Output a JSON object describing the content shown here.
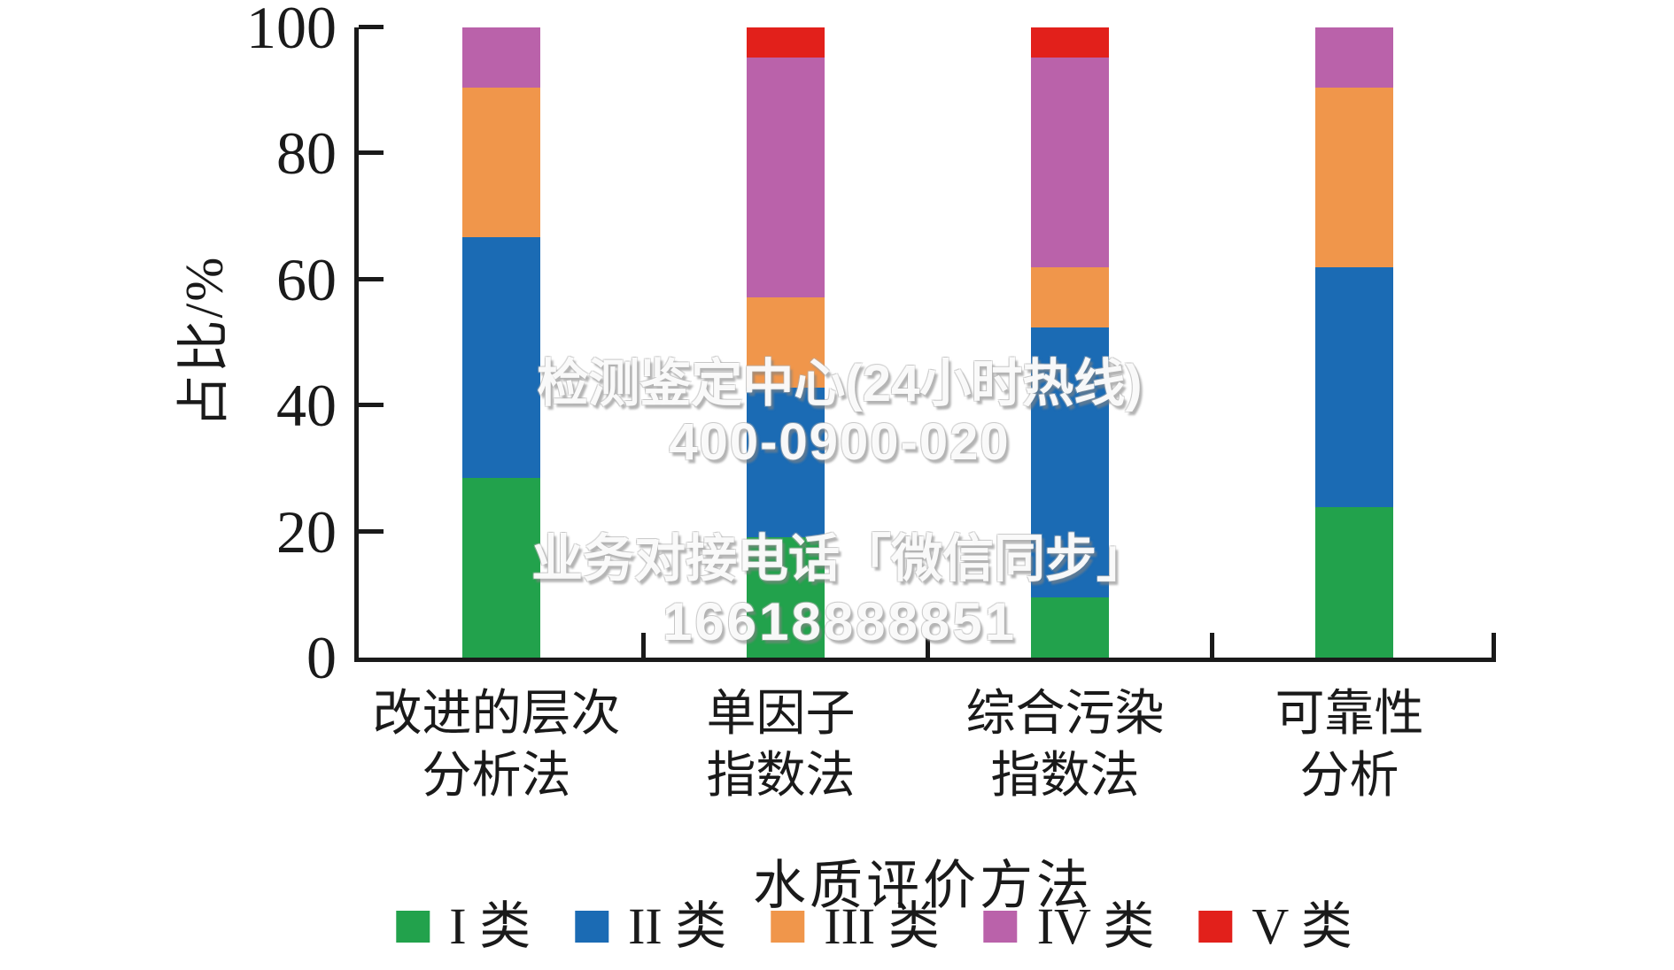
{
  "watermark": {
    "line1": "检测鉴定中心(24小时热线)",
    "line2": "400-0900-020",
    "line3": "业务对接电话「微信同步」",
    "line4": "16618888851"
  },
  "chart_data": {
    "type": "bar",
    "stacked": true,
    "orientation": "vertical",
    "xlabel": "水质评价方法",
    "ylabel": "占比/%",
    "ylim": [
      0,
      100
    ],
    "yticks": [
      0,
      20,
      40,
      60,
      80,
      100
    ],
    "grid": false,
    "legend_position": "bottom",
    "categories_line1": [
      "改进的层次",
      "单因子",
      "综合污染",
      "可靠性"
    ],
    "categories_line2": [
      "分析法",
      "指数法",
      "指数法",
      "分析"
    ],
    "series": [
      {
        "name": "I 类",
        "color": "#22A24C",
        "values": [
          28.57,
          19.05,
          9.52,
          23.81
        ]
      },
      {
        "name": "II 类",
        "color": "#1B6BB4",
        "values": [
          38.1,
          23.81,
          42.86,
          38.1
        ]
      },
      {
        "name": "III 类",
        "color": "#F0964B",
        "values": [
          23.81,
          14.29,
          9.52,
          28.57
        ]
      },
      {
        "name": "IV 类",
        "color": "#BA62AA",
        "values": [
          9.52,
          38.1,
          33.33,
          9.52
        ]
      },
      {
        "name": "V 类",
        "color": "#E2201B",
        "values": [
          0,
          4.76,
          4.76,
          0
        ]
      }
    ],
    "axis_color": "#1a1a1a"
  }
}
